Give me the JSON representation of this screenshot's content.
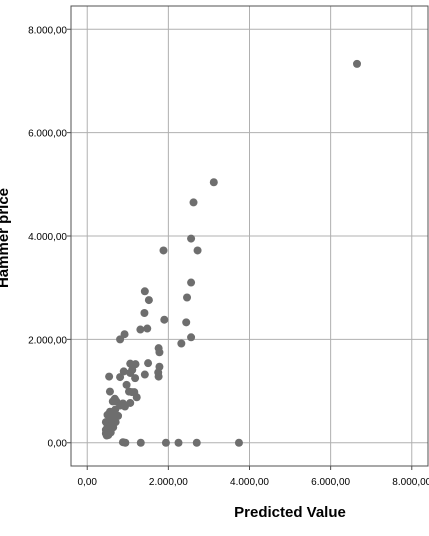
{
  "chart_data": {
    "type": "scatter",
    "xlabel": "Predicted Value",
    "ylabel": "Hammer price",
    "xlim": [
      -400,
      8400
    ],
    "ylim": [
      -450,
      8450
    ],
    "x_ticks": [
      {
        "value": 0,
        "label": "0,00"
      },
      {
        "value": 2000,
        "label": "2.000,00"
      },
      {
        "value": 4000,
        "label": "4.000,00"
      },
      {
        "value": 6000,
        "label": "6.000,00"
      },
      {
        "value": 8000,
        "label": "8.000,00"
      }
    ],
    "y_ticks": [
      {
        "value": 0,
        "label": "0,00"
      },
      {
        "value": 2000,
        "label": "2.000,00"
      },
      {
        "value": 4000,
        "label": "4.000,00"
      },
      {
        "value": 6000,
        "label": "6.000,00"
      },
      {
        "value": 8000,
        "label": "8.000,00"
      }
    ],
    "grid": true,
    "colors": {
      "point": "#6e6e6e",
      "grid": "#b0b0b0",
      "frame": "#505050"
    },
    "points": [
      [
        6650,
        7330
      ],
      [
        3120,
        5040
      ],
      [
        2620,
        4650
      ],
      [
        2560,
        3950
      ],
      [
        2720,
        3720
      ],
      [
        1880,
        3720
      ],
      [
        2560,
        3100
      ],
      [
        1420,
        2930
      ],
      [
        1520,
        2760
      ],
      [
        2460,
        2810
      ],
      [
        1410,
        2510
      ],
      [
        1310,
        2190
      ],
      [
        1480,
        2210
      ],
      [
        1900,
        2380
      ],
      [
        2440,
        2330
      ],
      [
        2560,
        2040
      ],
      [
        2320,
        1920
      ],
      [
        920,
        2100
      ],
      [
        810,
        2000
      ],
      [
        1760,
        1830
      ],
      [
        1780,
        1750
      ],
      [
        1500,
        1540
      ],
      [
        1060,
        1530
      ],
      [
        1190,
        1520
      ],
      [
        1780,
        1470
      ],
      [
        900,
        1380
      ],
      [
        1110,
        1410
      ],
      [
        1060,
        1350
      ],
      [
        1420,
        1320
      ],
      [
        1750,
        1360
      ],
      [
        1760,
        1280
      ],
      [
        540,
        1280
      ],
      [
        810,
        1270
      ],
      [
        1180,
        1250
      ],
      [
        970,
        1120
      ],
      [
        560,
        990
      ],
      [
        1030,
        990
      ],
      [
        1160,
        980
      ],
      [
        1100,
        980
      ],
      [
        1220,
        880
      ],
      [
        680,
        850
      ],
      [
        630,
        800
      ],
      [
        720,
        800
      ],
      [
        1060,
        770
      ],
      [
        880,
        760
      ],
      [
        930,
        700
      ],
      [
        810,
        720
      ],
      [
        690,
        640
      ],
      [
        560,
        600
      ],
      [
        660,
        560
      ],
      [
        500,
        540
      ],
      [
        760,
        520
      ],
      [
        560,
        480
      ],
      [
        640,
        460
      ],
      [
        520,
        420
      ],
      [
        700,
        400
      ],
      [
        460,
        400
      ],
      [
        600,
        360
      ],
      [
        500,
        320
      ],
      [
        560,
        280
      ],
      [
        640,
        300
      ],
      [
        460,
        250
      ],
      [
        520,
        220
      ],
      [
        580,
        200
      ],
      [
        460,
        180
      ],
      [
        520,
        150
      ],
      [
        480,
        140
      ],
      [
        880,
        10
      ],
      [
        940,
        0
      ],
      [
        1320,
        0
      ],
      [
        1940,
        0
      ],
      [
        2250,
        0
      ],
      [
        2700,
        0
      ],
      [
        3740,
        0
      ]
    ]
  }
}
